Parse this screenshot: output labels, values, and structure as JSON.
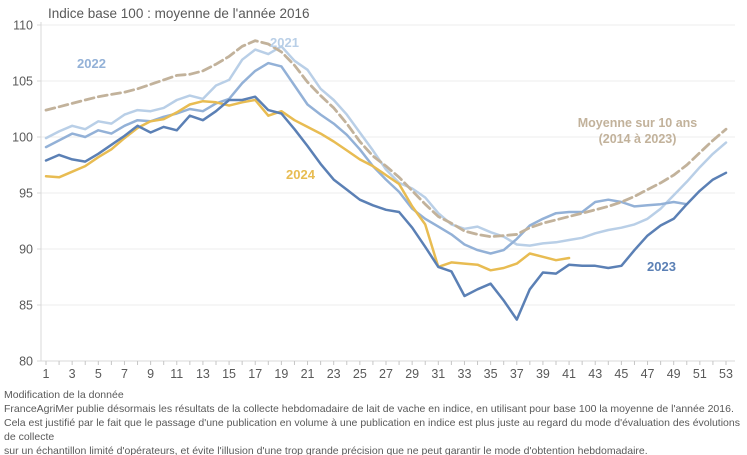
{
  "title": "Indice base 100 : moyenne de l'année 2016",
  "footer": {
    "lines": [
      "Modification de la donnée",
      "FranceAgriMer publie désormais les résultats de la collecte hebdomadaire de lait de vache en indice, en utilisant pour base 100 la moyenne de l'année 2016.",
      "Cela est justifié par le fait que le passage d'une publication en volume à une publication en indice est plus juste au regard du mode d'évaluation des évolutions de collecte",
      "sur un échantillon limité d'opérateurs, et évite l'illusion d'une trop grande précision que ne peut garantir le mode d'obtention hebdomadaire."
    ]
  },
  "avg_label": {
    "line1": "Moyenne sur 10 ans",
    "line2": "(2014 à 2023)"
  },
  "colors": {
    "axis_text": "#595959",
    "gridline": "#ececec",
    "axis_line": "#d9d9d9",
    "tick": "#c6c6c6"
  },
  "chart_data": {
    "type": "line",
    "title": "Indice base 100 : moyenne de l'année 2016",
    "xlabel": "",
    "ylabel": "",
    "xlim": [
      1,
      53
    ],
    "ylim": [
      80,
      110
    ],
    "grid": true,
    "yticks": [
      80,
      85,
      90,
      95,
      100,
      105,
      110
    ],
    "xtick_labels": [
      1,
      3,
      5,
      7,
      9,
      11,
      13,
      15,
      17,
      19,
      21,
      23,
      25,
      27,
      29,
      31,
      33,
      35,
      37,
      39,
      41,
      43,
      45,
      47,
      49,
      51,
      53
    ],
    "x_unit": "semaine",
    "series": [
      {
        "name": "2021",
        "color": "#b9cfe7",
        "dashed": false,
        "values": [
          99.9,
          100.5,
          101.0,
          100.7,
          101.4,
          101.2,
          102.0,
          102.4,
          102.3,
          102.6,
          103.3,
          103.7,
          103.4,
          104.6,
          105.1,
          106.9,
          107.8,
          107.4,
          108.1,
          106.8,
          106.0,
          104.3,
          103.3,
          102.0,
          100.4,
          98.8,
          97.1,
          95.9,
          95.4,
          94.6,
          93.2,
          92.2,
          91.8,
          92.0,
          91.5,
          91.1,
          90.4,
          90.3,
          90.5,
          90.6,
          90.8,
          91.0,
          91.4,
          91.7,
          91.9,
          92.2,
          92.7,
          93.6,
          94.8,
          96.0,
          97.3,
          98.5,
          99.5
        ]
      },
      {
        "name": "2022",
        "color": "#93b1d7",
        "dashed": false,
        "values": [
          99.1,
          99.7,
          100.3,
          100.0,
          100.6,
          100.3,
          101.0,
          101.5,
          101.4,
          101.8,
          102.1,
          102.5,
          102.3,
          103.0,
          103.4,
          104.8,
          105.9,
          106.6,
          106.3,
          104.6,
          102.9,
          102.0,
          101.2,
          100.2,
          98.9,
          97.4,
          96.2,
          95.1,
          93.6,
          92.7,
          92.0,
          91.3,
          90.4,
          89.9,
          89.6,
          89.9,
          90.9,
          92.1,
          92.7,
          93.2,
          93.3,
          93.3,
          94.2,
          94.4,
          94.2,
          93.8,
          93.9,
          94.0,
          94.2,
          94.0,
          null,
          null,
          null
        ]
      },
      {
        "name": "2024",
        "color": "#e8bc52",
        "dashed": false,
        "values": [
          96.5,
          96.4,
          96.9,
          97.4,
          98.2,
          98.9,
          99.9,
          100.8,
          101.4,
          101.6,
          102.2,
          102.9,
          103.2,
          103.1,
          102.8,
          103.1,
          103.3,
          101.9,
          102.3,
          101.5,
          100.9,
          100.3,
          99.6,
          98.8,
          98.0,
          97.4,
          96.6,
          95.8,
          93.8,
          92.2,
          88.4,
          88.8,
          88.7,
          88.6,
          88.1,
          88.3,
          88.7,
          89.6,
          89.3,
          89.0,
          89.2,
          null,
          null,
          null,
          null,
          null,
          null,
          null,
          null,
          null,
          null,
          null,
          null
        ]
      },
      {
        "name": "2023",
        "color": "#5b80b5",
        "dashed": false,
        "values": [
          97.9,
          98.4,
          98.0,
          97.8,
          98.5,
          99.3,
          100.1,
          101.0,
          100.4,
          100.9,
          100.6,
          101.9,
          101.5,
          102.3,
          103.3,
          103.3,
          103.6,
          102.4,
          102.1,
          100.7,
          99.2,
          97.6,
          96.2,
          95.3,
          94.4,
          93.9,
          93.5,
          93.3,
          91.9,
          90.2,
          88.4,
          88.0,
          85.8,
          86.4,
          86.9,
          85.4,
          83.7,
          86.4,
          87.9,
          87.8,
          88.6,
          88.5,
          88.5,
          88.3,
          88.5,
          89.9,
          91.2,
          92.1,
          92.7,
          94.0,
          95.2,
          96.2,
          96.8
        ]
      },
      {
        "name": "Moyenne sur 10 ans (2014 à 2023)",
        "color": "#c2b29b",
        "dashed": true,
        "values": [
          102.4,
          102.7,
          103.0,
          103.3,
          103.6,
          103.8,
          104.0,
          104.3,
          104.7,
          105.1,
          105.5,
          105.6,
          105.9,
          106.5,
          107.2,
          108.1,
          108.6,
          108.3,
          107.6,
          106.4,
          104.9,
          103.7,
          102.6,
          101.2,
          99.6,
          98.3,
          97.4,
          96.4,
          95.2,
          94.0,
          92.9,
          92.3,
          91.6,
          91.3,
          91.1,
          91.2,
          91.3,
          91.9,
          92.3,
          92.6,
          92.9,
          93.2,
          93.5,
          93.8,
          94.2,
          94.7,
          95.3,
          95.9,
          96.6,
          97.5,
          98.6,
          99.7,
          100.7
        ]
      }
    ],
    "legend_position": "labels-on-chart"
  }
}
